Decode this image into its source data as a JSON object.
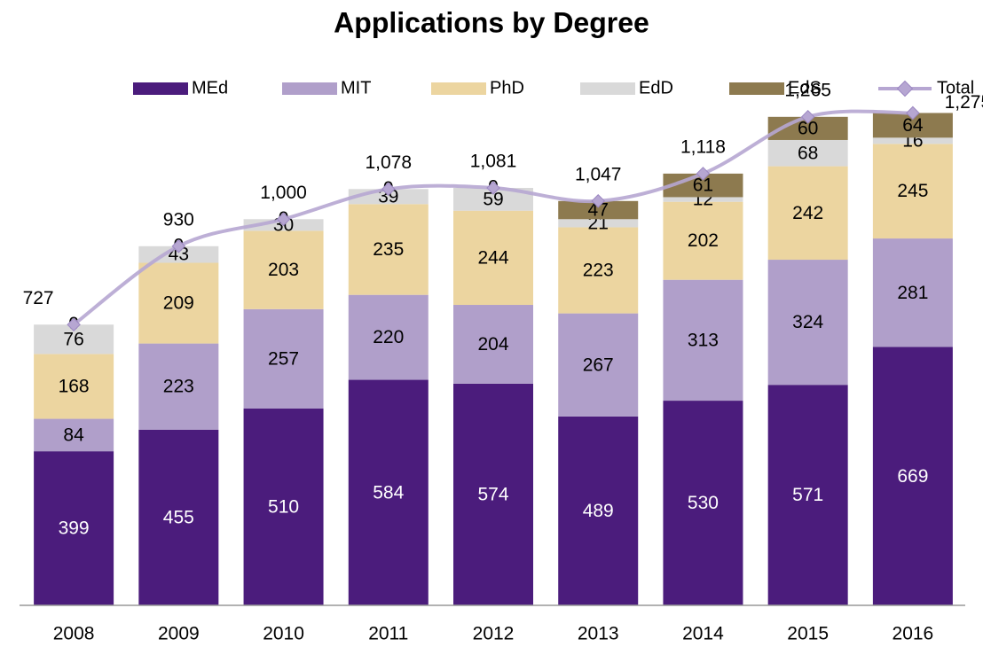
{
  "chart_data": {
    "type": "stacked_bar_line",
    "title": "Applications by Degree",
    "categories": [
      "2008",
      "2009",
      "2010",
      "2011",
      "2012",
      "2013",
      "2014",
      "2015",
      "2016"
    ],
    "series": [
      {
        "name": "MEd",
        "color": "#4b1c7c",
        "values": [
          399,
          455,
          510,
          584,
          574,
          489,
          530,
          571,
          669
        ]
      },
      {
        "name": "MIT",
        "color": "#b09fca",
        "values": [
          84,
          223,
          257,
          220,
          204,
          267,
          313,
          324,
          281
        ]
      },
      {
        "name": "PhD",
        "color": "#ecd5a0",
        "values": [
          168,
          209,
          203,
          235,
          244,
          223,
          202,
          242,
          245
        ]
      },
      {
        "name": "EdD",
        "color": "#d9d9d9",
        "values": [
          76,
          43,
          30,
          39,
          59,
          21,
          12,
          68,
          16
        ]
      },
      {
        "name": "EdS",
        "color": "#8d7a4f",
        "values": [
          0,
          0,
          0,
          0,
          0,
          47,
          61,
          60,
          64
        ]
      },
      {
        "name": "Total",
        "color": "#b6a6d2",
        "type": "line",
        "values": [
          727,
          930,
          1000,
          1078,
          1081,
          1047,
          1118,
          1265,
          1275
        ],
        "value_labels": [
          "727",
          "930",
          "1,000",
          "1,078",
          "1,081",
          "1,047",
          "1,118",
          "1,265",
          "1,275"
        ]
      }
    ],
    "ylim": [
      0,
      1400
    ],
    "legend": "top"
  }
}
